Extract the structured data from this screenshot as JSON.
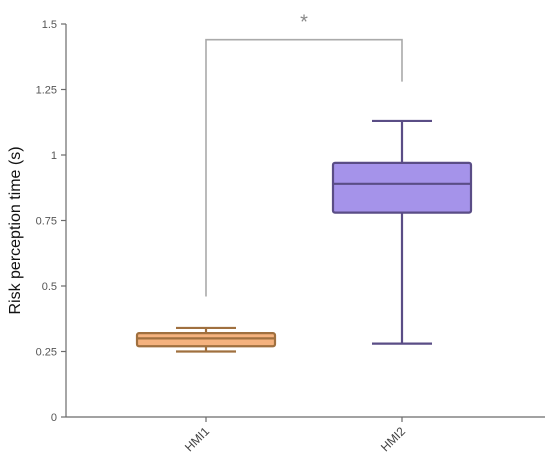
{
  "chart_data": {
    "type": "box",
    "ylabel": "Risk perception time (s)",
    "xlabel": "",
    "ylim": [
      0,
      1.5
    ],
    "yticks": [
      0,
      0.25,
      0.5,
      0.75,
      1,
      1.25,
      1.5
    ],
    "ytick_labels": [
      "0",
      "0.25",
      "0.5",
      "0.75",
      "1",
      "1.25",
      "1.5"
    ],
    "grid": false,
    "categories": [
      "HMI1",
      "HMI2"
    ],
    "boxes": [
      {
        "category": "HMI1",
        "whisker_low": 0.25,
        "q1": 0.27,
        "median": 0.3,
        "q3": 0.32,
        "whisker_high": 0.34,
        "fill": "#f5b27e",
        "stroke": "#a0703f"
      },
      {
        "category": "HMI2",
        "whisker_low": 0.28,
        "q1": 0.78,
        "median": 0.89,
        "q3": 0.97,
        "whisker_high": 1.13,
        "fill": "#a593ea",
        "stroke": "#5a4d86"
      }
    ],
    "significance": {
      "between": [
        "HMI1",
        "HMI2"
      ],
      "label": "*",
      "bracket_y": 1.44,
      "left_drop_to": 0.46,
      "right_drop_to": 1.28,
      "color": "#aaaaaa"
    }
  }
}
